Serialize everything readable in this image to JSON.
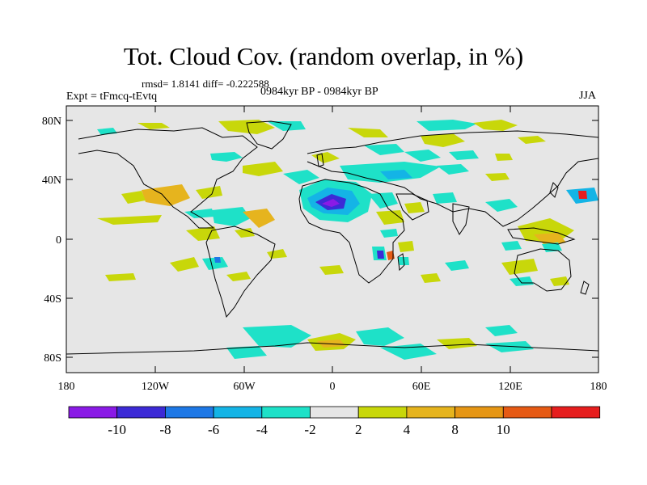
{
  "title": "Tot. Cloud Cov. (random overlap, in %)",
  "stats": "rmsd= 1.8141 diff= -0.222588",
  "experiment": "Expt = tFmcq-tEvtq",
  "period": "0984kyr BP - 0984kyr BP",
  "season": "JJA",
  "map": {
    "y_axis_labels": [
      "80N",
      "40N",
      "0",
      "40S",
      "80S"
    ],
    "x_axis_labels": [
      "180",
      "120W",
      "60W",
      "0",
      "60E",
      "120E",
      "180"
    ],
    "background_color": "#e6e6e6"
  },
  "colorbar": {
    "colors": [
      "#8a1ae6",
      "#3c2ad6",
      "#1e78e6",
      "#14b4e6",
      "#1ee1c8",
      "#e6e6e6",
      "#c8d70a",
      "#e6b41e",
      "#e69614",
      "#e65a14",
      "#e61e1e"
    ],
    "labels": [
      "-10",
      "-8",
      "-6",
      "-4",
      "-2",
      "2",
      "4",
      "8",
      "10"
    ]
  }
}
